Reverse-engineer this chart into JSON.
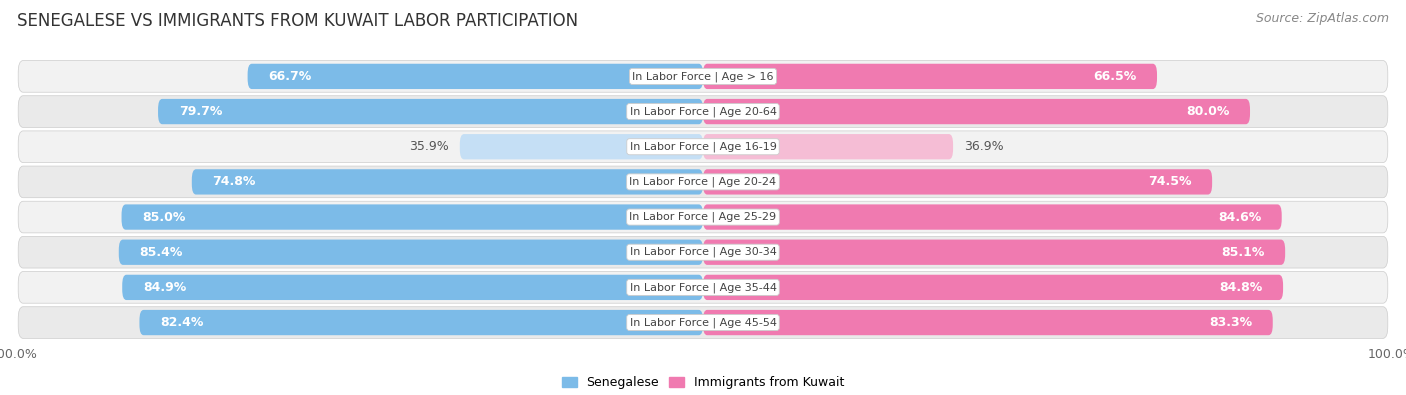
{
  "title": "SENEGALESE VS IMMIGRANTS FROM KUWAIT LABOR PARTICIPATION",
  "source": "Source: ZipAtlas.com",
  "categories": [
    "In Labor Force | Age > 16",
    "In Labor Force | Age 20-64",
    "In Labor Force | Age 16-19",
    "In Labor Force | Age 20-24",
    "In Labor Force | Age 25-29",
    "In Labor Force | Age 30-34",
    "In Labor Force | Age 35-44",
    "In Labor Force | Age 45-54"
  ],
  "senegalese": [
    66.7,
    79.7,
    35.9,
    74.8,
    85.0,
    85.4,
    84.9,
    82.4
  ],
  "kuwait": [
    66.5,
    80.0,
    36.9,
    74.5,
    84.6,
    85.1,
    84.8,
    83.3
  ],
  "is_light": [
    false,
    false,
    true,
    false,
    false,
    false,
    false,
    false
  ],
  "senegalese_color": "#7CBBE8",
  "senegalese_color_light": "#C5DFF5",
  "kuwait_color": "#F07AB0",
  "kuwait_color_light": "#F5BDD5",
  "row_bg_color": "#F0F0F0",
  "row_bg_alt_color": "#E8E8E8",
  "max_val": 100.0,
  "legend_senegalese": "Senegalese",
  "legend_kuwait": "Immigrants from Kuwait",
  "title_fontsize": 12,
  "source_fontsize": 9,
  "bar_label_fontsize": 9,
  "category_fontsize": 8
}
